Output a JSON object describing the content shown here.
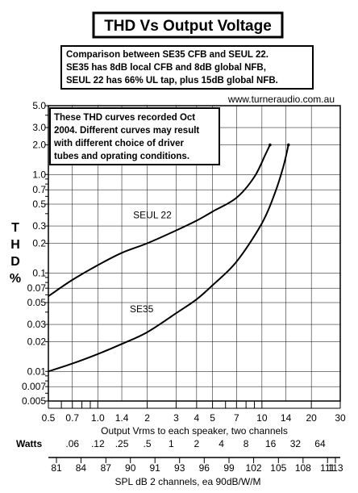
{
  "chart_data": {
    "type": "line",
    "title": "THD Vs Output Voltage",
    "subtitle_lines": [
      "Comparison  between SE35 CFB and SEUL 22.",
      "SE35 has 8dB local CFB and 8dB global NFB,",
      "SEUL 22 has 66% UL tap, plus 15dB global NFB."
    ],
    "watermark": "www.turneraudio.com.au",
    "note_lines": [
      "These THD curves recorded Oct",
      "2004. Different curves may result",
      "with different choice of driver",
      "tubes and oprating conditions."
    ],
    "ylabel_letters": [
      "T",
      "H",
      "D",
      "%"
    ],
    "xlabel": "Output Vrms to each speaker, two channels",
    "x_scale": "log",
    "y_scale": "log",
    "xlim": [
      0.5,
      30
    ],
    "ylim": [
      0.005,
      5
    ],
    "x_ticks": [
      {
        "value": 0.5,
        "label": "0.5"
      },
      {
        "value": 0.7,
        "label": "0.7"
      },
      {
        "value": 1.0,
        "label": "1.0"
      },
      {
        "value": 1.4,
        "label": "1.4"
      },
      {
        "value": 2,
        "label": "2"
      },
      {
        "value": 3,
        "label": "3"
      },
      {
        "value": 4,
        "label": "4"
      },
      {
        "value": 5,
        "label": "5"
      },
      {
        "value": 7,
        "label": "7"
      },
      {
        "value": 10,
        "label": "10"
      },
      {
        "value": 14,
        "label": "14"
      },
      {
        "value": 20,
        "label": "20"
      },
      {
        "value": 30,
        "label": "30"
      }
    ],
    "y_ticks": [
      {
        "value": 5.0,
        "label": "5.0"
      },
      {
        "value": 3.0,
        "label": "3.0"
      },
      {
        "value": 2.0,
        "label": "2.0"
      },
      {
        "value": 1.0,
        "label": "1.0"
      },
      {
        "value": 0.7,
        "label": "0.7"
      },
      {
        "value": 0.5,
        "label": "0.5"
      },
      {
        "value": 0.3,
        "label": "0.3"
      },
      {
        "value": 0.2,
        "label": "0.2"
      },
      {
        "value": 0.1,
        "label": "0.1"
      },
      {
        "value": 0.07,
        "label": "0.07"
      },
      {
        "value": 0.05,
        "label": "0.05"
      },
      {
        "value": 0.03,
        "label": "0.03"
      },
      {
        "value": 0.02,
        "label": "0.02"
      },
      {
        "value": 0.01,
        "label": "0.01"
      },
      {
        "value": 0.007,
        "label": "0.007"
      },
      {
        "value": 0.005,
        "label": "0.005"
      }
    ],
    "watts_scale": {
      "label": "Watts",
      "ticks": [
        {
          "value": 0.7,
          "label": ".06"
        },
        {
          "value": 1.0,
          "label": ".12"
        },
        {
          "value": 1.4,
          "label": ".25"
        },
        {
          "value": 2,
          "label": ".5"
        },
        {
          "value": 2.8,
          "label": "1"
        },
        {
          "value": 4,
          "label": "2"
        },
        {
          "value": 5.66,
          "label": "4"
        },
        {
          "value": 8,
          "label": "8"
        },
        {
          "value": 11.3,
          "label": "16"
        },
        {
          "value": 16,
          "label": "32"
        },
        {
          "value": 22.6,
          "label": "64"
        }
      ]
    },
    "spl_scale": {
      "label": "SPL dB    2 channels, ea 90dB/W/M",
      "ticks": [
        {
          "value": 0.56,
          "label": "81"
        },
        {
          "value": 0.79,
          "label": "84"
        },
        {
          "value": 1.12,
          "label": "87"
        },
        {
          "value": 1.58,
          "label": "90"
        },
        {
          "value": 2.23,
          "label": "91"
        },
        {
          "value": 3.15,
          "label": "93"
        },
        {
          "value": 4.45,
          "label": "96"
        },
        {
          "value": 6.3,
          "label": "99"
        },
        {
          "value": 8.9,
          "label": "102"
        },
        {
          "value": 12.6,
          "label": "105"
        },
        {
          "value": 17.8,
          "label": "108"
        },
        {
          "value": 25.1,
          "label": "111"
        },
        {
          "value": 35.5,
          "label": "113"
        }
      ]
    },
    "series": [
      {
        "name": "SEUL 22",
        "x": [
          0.5,
          0.7,
          1.0,
          1.4,
          2.0,
          3.0,
          4.0,
          5.0,
          7.0,
          9.0,
          10.5,
          11.2
        ],
        "y": [
          0.058,
          0.085,
          0.12,
          0.16,
          0.2,
          0.27,
          0.34,
          0.42,
          0.58,
          0.95,
          1.6,
          2.0
        ]
      },
      {
        "name": "SE35",
        "x": [
          0.5,
          0.7,
          1.0,
          1.4,
          2.0,
          3.0,
          4.0,
          5.0,
          7.0,
          10.0,
          12.0,
          13.5,
          14.5
        ],
        "y": [
          0.01,
          0.012,
          0.015,
          0.019,
          0.025,
          0.039,
          0.054,
          0.075,
          0.13,
          0.32,
          0.65,
          1.2,
          2.0
        ]
      }
    ],
    "series_labels": [
      {
        "name": "SEUL 22",
        "at_x": 2.15,
        "at_y": 0.36
      },
      {
        "name": "SE35",
        "at_x": 1.85,
        "at_y": 0.04
      }
    ]
  }
}
